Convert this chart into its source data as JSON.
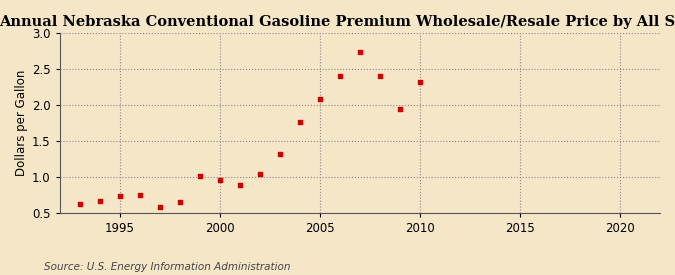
{
  "title": "Annual Nebraska Conventional Gasoline Premium Wholesale/Resale Price by All Sellers",
  "ylabel": "Dollars per Gallon",
  "source": "Source: U.S. Energy Information Administration",
  "background_color": "#f5e6c8",
  "marker_color": "#cc0000",
  "years": [
    1993,
    1994,
    1995,
    1996,
    1997,
    1998,
    1999,
    2000,
    2001,
    2002,
    2003,
    2004,
    2005,
    2006,
    2007,
    2008,
    2009,
    2010
  ],
  "values": [
    0.63,
    0.67,
    0.74,
    0.75,
    0.58,
    0.65,
    1.01,
    0.96,
    0.89,
    1.05,
    1.32,
    1.76,
    2.08,
    2.4,
    2.74,
    2.4,
    1.95,
    2.32
  ],
  "xlim": [
    1992,
    2022
  ],
  "ylim": [
    0.5,
    3.0
  ],
  "yticks": [
    0.5,
    1.0,
    1.5,
    2.0,
    2.5,
    3.0
  ],
  "xticks": [
    1995,
    2000,
    2005,
    2010,
    2015,
    2020
  ],
  "title_fontsize": 10.5,
  "label_fontsize": 8.5,
  "tick_fontsize": 8.5,
  "source_fontsize": 7.5
}
